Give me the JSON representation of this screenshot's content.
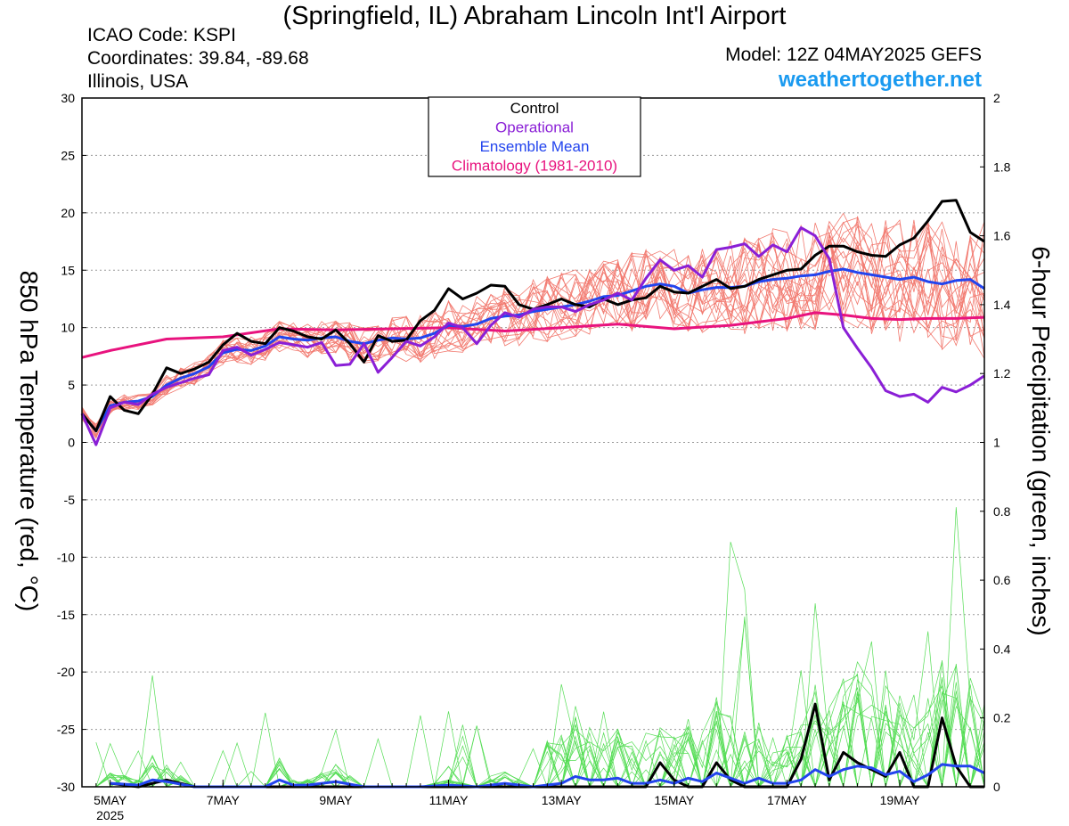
{
  "header": {
    "title": "(Springfield, IL) Abraham Lincoln Int'l Airport",
    "icao": "ICAO Code: KSPI",
    "coordinates": "Coordinates: 39.84, -89.68",
    "region": "Illinois, USA",
    "model": "Model: 12Z 04MAY2025 GEFS",
    "brand": "weathertogether.net"
  },
  "colors": {
    "control": "#000000",
    "operational": "#8a1fd6",
    "ensemble_mean": "#2244ee",
    "climatology": "#e8137e",
    "members_temp": "#f27a70",
    "members_precip": "#55dd55",
    "brand": "#1a9af0"
  },
  "chart_data": {
    "type": "line",
    "xlabel": "",
    "ylabel": "850 hPa Temperature (red, °C)",
    "y2label": "6-hour Precipitation (green, inches)",
    "xlim": [
      4.5,
      20.5
    ],
    "ylim": [
      -30,
      30
    ],
    "y2lim": [
      0,
      2
    ],
    "grid": true,
    "legend_position": "top-center",
    "x_ticks": [
      {
        "x": 5,
        "label": "5MAY",
        "sub": "2025"
      },
      {
        "x": 7,
        "label": "7MAY",
        "sub": ""
      },
      {
        "x": 9,
        "label": "9MAY",
        "sub": ""
      },
      {
        "x": 11,
        "label": "11MAY",
        "sub": ""
      },
      {
        "x": 13,
        "label": "13MAY",
        "sub": ""
      },
      {
        "x": 15,
        "label": "15MAY",
        "sub": ""
      },
      {
        "x": 17,
        "label": "17MAY",
        "sub": ""
      },
      {
        "x": 19,
        "label": "19MAY",
        "sub": ""
      }
    ],
    "y_ticks": [
      "30",
      "25",
      "20",
      "15",
      "10",
      "5",
      "0",
      "-5",
      "-10",
      "-15",
      "-20",
      "-25",
      "-30"
    ],
    "y2_ticks": [
      "2",
      "1.8",
      "1.6",
      "1.4",
      "1.2",
      "1",
      "0.8",
      "0.6",
      "0.4",
      "0.2",
      "0"
    ],
    "legend": [
      "Control",
      "Operational",
      "Ensemble Mean",
      "Climatology (1981-2010)"
    ],
    "series_temp": [
      {
        "name": "Control",
        "key": "control",
        "x": [
          4.5,
          4.75,
          5.0,
          5.25,
          5.5,
          5.75,
          6.0,
          6.25,
          6.5,
          6.75,
          7.0,
          7.25,
          7.5,
          7.75,
          8.0,
          8.25,
          8.5,
          8.75,
          9.0,
          9.25,
          9.5,
          9.75,
          10.0,
          10.25,
          10.5,
          10.75,
          11.0,
          11.25,
          11.5,
          11.75,
          12.0,
          12.25,
          12.5,
          12.75,
          13.0,
          13.25,
          13.5,
          13.75,
          14.0,
          14.25,
          14.5,
          14.75,
          15.0,
          15.25,
          15.5,
          15.75,
          16.0,
          16.25,
          16.5,
          16.75,
          17.0,
          17.25,
          17.5,
          17.75,
          18.0,
          18.25,
          18.5,
          18.75,
          19.0,
          19.25,
          19.5,
          19.75,
          20.0,
          20.25,
          20.5
        ],
        "values": [
          2.5,
          1.0,
          4.0,
          2.8,
          2.5,
          4.2,
          6.5,
          6.0,
          6.4,
          7.0,
          8.5,
          9.5,
          8.8,
          8.6,
          10.0,
          9.7,
          9.2,
          9.0,
          9.8,
          8.6,
          7.0,
          9.3,
          8.8,
          8.9,
          10.6,
          11.5,
          13.4,
          12.5,
          13.0,
          13.7,
          13.6,
          12.0,
          11.6,
          12.0,
          12.5,
          12.0,
          11.8,
          12.5,
          12.0,
          12.4,
          12.6,
          13.6,
          13.1,
          13.0,
          13.6,
          14.2,
          13.4,
          13.6,
          14.2,
          14.6,
          15.0,
          15.1,
          16.3,
          17.1,
          17.1,
          16.6,
          16.3,
          16.2,
          17.2,
          17.8,
          19.3,
          21.0,
          21.1,
          18.3,
          17.5
        ]
      },
      {
        "name": "Operational",
        "key": "operational",
        "x": [
          4.5,
          4.75,
          5.0,
          5.25,
          5.5,
          5.75,
          6.0,
          6.25,
          6.5,
          6.75,
          7.0,
          7.25,
          7.5,
          7.75,
          8.0,
          8.25,
          8.5,
          8.75,
          9.0,
          9.25,
          9.5,
          9.75,
          10.0,
          10.25,
          10.5,
          10.75,
          11.0,
          11.25,
          11.5,
          11.75,
          12.0,
          12.25,
          12.5,
          12.75,
          13.0,
          13.25,
          13.5,
          13.75,
          14.0,
          14.25,
          14.5,
          14.75,
          15.0,
          15.25,
          15.5,
          15.75,
          16.0,
          16.25,
          16.5,
          16.75,
          17.0,
          17.25,
          17.5,
          17.75,
          18.0,
          18.25,
          18.5,
          18.75,
          19.0,
          19.25,
          19.5,
          19.75,
          20.0,
          20.25,
          20.5
        ],
        "values": [
          2.5,
          -0.2,
          3.0,
          3.5,
          3.3,
          4.2,
          4.8,
          5.2,
          5.6,
          5.9,
          8.0,
          8.3,
          7.6,
          8.1,
          8.7,
          8.5,
          8.3,
          8.7,
          6.7,
          6.8,
          8.6,
          6.1,
          7.4,
          8.8,
          8.4,
          9.2,
          10.4,
          10.0,
          8.6,
          10.2,
          11.3,
          10.9,
          11.6,
          11.8,
          11.8,
          11.4,
          12.0,
          12.4,
          13.0,
          12.4,
          14.3,
          15.9,
          15.0,
          15.4,
          14.4,
          16.8,
          17.0,
          17.3,
          16.2,
          17.2,
          16.6,
          18.7,
          18.0,
          16.0,
          10.0,
          8.2,
          6.5,
          4.5,
          4.0,
          4.2,
          3.5,
          4.8,
          4.4,
          5.0,
          5.8
        ]
      },
      {
        "name": "Ensemble Mean",
        "key": "ensemble_mean",
        "x": [
          4.5,
          4.75,
          5.0,
          5.25,
          5.5,
          5.75,
          6.0,
          6.25,
          6.5,
          6.75,
          7.0,
          7.25,
          7.5,
          7.75,
          8.0,
          8.25,
          8.5,
          8.75,
          9.0,
          9.25,
          9.5,
          9.75,
          10.0,
          10.25,
          10.5,
          10.75,
          11.0,
          11.25,
          11.5,
          11.75,
          12.0,
          12.25,
          12.5,
          12.75,
          13.0,
          13.25,
          13.5,
          13.75,
          14.0,
          14.25,
          14.5,
          14.75,
          15.0,
          15.25,
          15.5,
          15.75,
          16.0,
          16.25,
          16.5,
          16.75,
          17.0,
          17.25,
          17.5,
          17.75,
          18.0,
          18.25,
          18.5,
          18.75,
          19.0,
          19.25,
          19.5,
          19.75,
          20.0,
          20.25,
          20.5
        ],
        "values": [
          2.5,
          1.0,
          3.2,
          3.5,
          3.6,
          4.0,
          5.0,
          5.6,
          6.0,
          6.6,
          7.8,
          8.1,
          8.0,
          8.4,
          9.2,
          9.0,
          8.9,
          9.1,
          9.2,
          8.8,
          8.6,
          8.9,
          9.1,
          9.0,
          9.1,
          9.5,
          10.2,
          10.1,
          10.3,
          10.8,
          11.0,
          11.1,
          11.4,
          11.6,
          11.8,
          12.0,
          12.3,
          12.7,
          12.8,
          13.2,
          13.6,
          13.8,
          13.6,
          13.0,
          13.3,
          13.5,
          13.5,
          13.6,
          14.0,
          14.2,
          14.3,
          14.5,
          14.6,
          14.9,
          15.1,
          14.8,
          14.6,
          14.4,
          14.2,
          14.4,
          14.0,
          13.8,
          14.1,
          14.2,
          13.4
        ]
      },
      {
        "name": "Climatology (1981-2010)",
        "key": "climatology",
        "x": [
          4.5,
          5.0,
          6.0,
          7.0,
          8.0,
          9.0,
          10.0,
          11.0,
          12.0,
          13.0,
          14.0,
          15.0,
          16.0,
          17.0,
          17.5,
          18.0,
          18.5,
          19.0,
          19.5,
          20.0,
          20.5
        ],
        "values": [
          7.4,
          8.0,
          9.0,
          9.2,
          9.9,
          9.8,
          9.9,
          10.0,
          9.7,
          10.0,
          10.3,
          9.9,
          10.2,
          10.8,
          11.3,
          11.1,
          10.8,
          10.7,
          10.8,
          10.8,
          10.9
        ]
      }
    ],
    "series_precip": [
      {
        "name": "Control",
        "key": "control",
        "x": [
          5.0,
          5.5,
          6.0,
          6.5,
          7.0,
          8.0,
          9.0,
          10.0,
          11.0,
          12.0,
          13.0,
          14.0,
          14.25,
          14.5,
          14.75,
          15.0,
          15.25,
          15.5,
          15.75,
          16.0,
          16.25,
          16.5,
          16.75,
          17.0,
          17.25,
          17.5,
          17.75,
          18.0,
          18.25,
          18.5,
          18.75,
          19.0,
          19.25,
          19.5,
          19.75,
          20.0,
          20.25,
          20.5
        ],
        "values": [
          0.01,
          0.0,
          0.02,
          0.0,
          0.0,
          0.0,
          0.0,
          0.0,
          0.0,
          0.0,
          0.0,
          0.0,
          0.0,
          0.0,
          0.07,
          0.02,
          0.0,
          0.0,
          0.07,
          0.02,
          0.0,
          0.0,
          0.0,
          0.0,
          0.08,
          0.24,
          0.02,
          0.1,
          0.07,
          0.05,
          0.03,
          0.1,
          0.0,
          0.0,
          0.2,
          0.06,
          0.0,
          0.0
        ]
      },
      {
        "name": "Ensemble Mean",
        "key": "ensemble_mean",
        "x": [
          5.0,
          5.5,
          5.75,
          6.0,
          6.5,
          7.0,
          7.5,
          7.75,
          8.0,
          8.25,
          8.5,
          9.0,
          9.5,
          10.0,
          10.5,
          11.0,
          11.5,
          12.0,
          12.5,
          13.0,
          13.25,
          13.5,
          13.75,
          14.0,
          14.25,
          14.5,
          14.75,
          15.0,
          15.25,
          15.5,
          15.75,
          16.0,
          16.25,
          16.5,
          16.75,
          17.0,
          17.25,
          17.5,
          17.75,
          18.0,
          18.25,
          18.5,
          18.75,
          19.0,
          19.25,
          19.5,
          19.75,
          20.0,
          20.25,
          20.5
        ],
        "values": [
          0.01,
          0.005,
          0.02,
          0.015,
          0.0,
          0.0,
          0.0,
          0.0,
          0.02,
          0.005,
          0.005,
          0.015,
          0.0,
          0.0,
          0.0,
          0.005,
          0.0,
          0.01,
          0.0,
          0.01,
          0.03,
          0.02,
          0.02,
          0.025,
          0.01,
          0.01,
          0.02,
          0.01,
          0.025,
          0.015,
          0.04,
          0.025,
          0.01,
          0.025,
          0.01,
          0.01,
          0.02,
          0.05,
          0.03,
          0.05,
          0.06,
          0.055,
          0.035,
          0.045,
          0.015,
          0.035,
          0.065,
          0.06,
          0.06,
          0.04
        ]
      }
    ]
  }
}
